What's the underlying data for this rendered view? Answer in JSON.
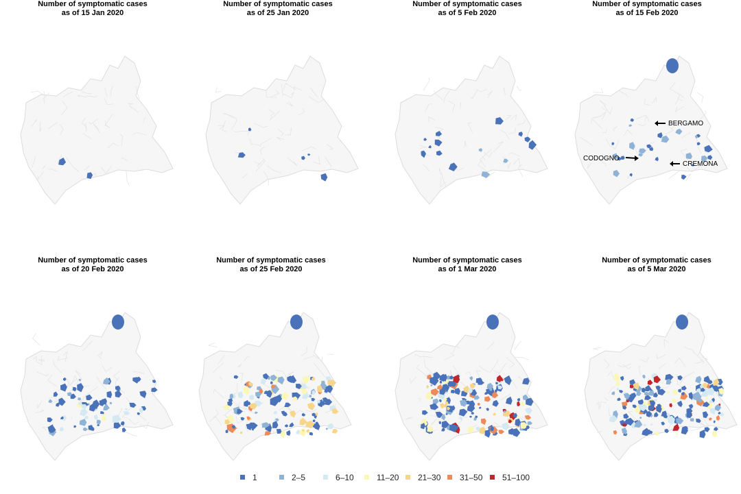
{
  "panels": [
    {
      "title_line1": "Number of symptomatic cases",
      "title_line2": "as of 15 Jan 2020"
    },
    {
      "title_line1": "Number of symptomatic cases",
      "title_line2": "as of 25 Jan 2020"
    },
    {
      "title_line1": "Number of symptomatic cases",
      "title_line2": "as of 5 Feb 2020"
    },
    {
      "title_line1": "Number of symptomatic cases",
      "title_line2": "as of 15 Feb 2020"
    },
    {
      "title_line1": "Number of symptomatic cases",
      "title_line2": "as of 20 Feb 2020"
    },
    {
      "title_line1": "Number of symptomatic cases",
      "title_line2": "as of 25 Feb 2020"
    },
    {
      "title_line1": "Number of symptomatic cases",
      "title_line2": "as of 1 Mar 2020"
    },
    {
      "title_line1": "Number of symptomatic cases",
      "title_line2": "as of 5 Mar 2020"
    }
  ],
  "annotations": {
    "bergamo": "BERGAMO",
    "codogno": "CODOGNO",
    "cremona": "CREMONA"
  },
  "legend": [
    {
      "label": "1",
      "color": "#4a72b8"
    },
    {
      "label": "2–5",
      "color": "#8fb3d6"
    },
    {
      "label": "6–10",
      "color": "#d5e9f2"
    },
    {
      "label": "11–20",
      "color": "#fbf7b6"
    },
    {
      "label": "21–30",
      "color": "#f7d58a"
    },
    {
      "label": "31–50",
      "color": "#ec8a5a"
    },
    {
      "label": "51–100",
      "color": "#c0272d"
    }
  ]
}
